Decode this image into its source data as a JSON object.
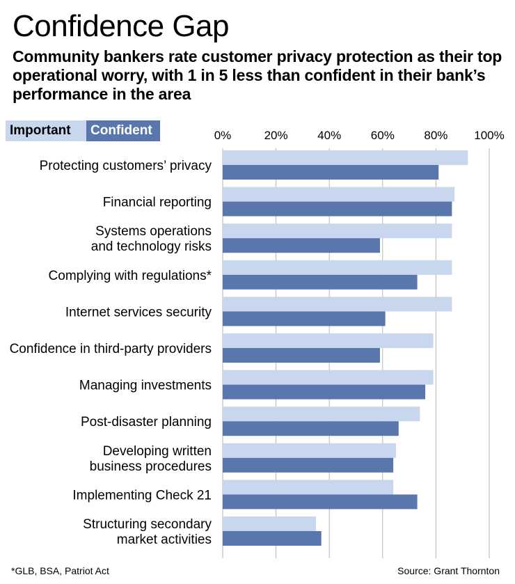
{
  "title": "Confidence Gap",
  "subtitle": "Community bankers rate customer privacy protection as their top operational worry, with 1 in 5 less than confident in their bank’s performance in the area",
  "legend": {
    "important": "Important",
    "confident": "Confident"
  },
  "footnote": "*GLB, BSA, Patriot Act",
  "source": "Source: Grant Thornton",
  "colors": {
    "important": "#c8d6ee",
    "confident": "#5a77ad",
    "grid": "#b5b5b5"
  },
  "chart_data": {
    "type": "bar",
    "orientation": "horizontal",
    "xlim": [
      0,
      100
    ],
    "ticks": [
      "0%",
      "20%",
      "40%",
      "60%",
      "80%",
      "100%"
    ],
    "tick_values": [
      0,
      20,
      40,
      60,
      80,
      100
    ],
    "grid": true,
    "legend_position": "top-left",
    "categories": [
      [
        "Protecting customers’ privacy"
      ],
      [
        "Financial reporting"
      ],
      [
        "Systems operations",
        "and technology risks"
      ],
      [
        "Complying with regulations*"
      ],
      [
        "Internet services security"
      ],
      [
        "Confidence in third-party providers"
      ],
      [
        "Managing investments"
      ],
      [
        "Post-disaster planning"
      ],
      [
        "Developing written",
        "business procedures"
      ],
      [
        "Implementing Check 21"
      ],
      [
        "Structuring secondary",
        "market activities"
      ]
    ],
    "series": [
      {
        "name": "Important",
        "values": [
          92,
          87,
          86,
          86,
          86,
          79,
          79,
          74,
          65,
          64,
          35
        ]
      },
      {
        "name": "Confident",
        "values": [
          81,
          86,
          59,
          73,
          61,
          59,
          76,
          66,
          64,
          73,
          37
        ]
      }
    ]
  }
}
